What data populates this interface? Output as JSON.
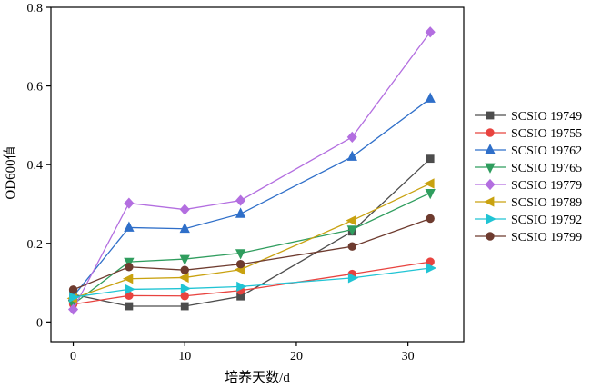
{
  "chart_data": {
    "type": "line",
    "title": "",
    "xlabel": "培养天数/d",
    "ylabel": "OD600值",
    "xlim": [
      -2,
      35
    ],
    "ylim": [
      -0.05,
      0.8
    ],
    "xticks": [
      0,
      10,
      20,
      30
    ],
    "yticks": [
      0,
      0.2,
      0.4,
      0.6,
      0.8
    ],
    "x": [
      0,
      5,
      10,
      15,
      25,
      32
    ],
    "legend_position": "right",
    "series": [
      {
        "name": "SCSIO 19749",
        "color": "#4d4d4d",
        "marker": "square",
        "values": [
          0.07,
          0.04,
          0.04,
          0.065,
          0.23,
          0.415
        ]
      },
      {
        "name": "SCSIO 19755",
        "color": "#e8433f",
        "marker": "circle",
        "values": [
          0.045,
          0.067,
          0.066,
          0.08,
          0.122,
          0.153
        ]
      },
      {
        "name": "SCSIO 19762",
        "color": "#2f6fc9",
        "marker": "triangle-up",
        "values": [
          0.065,
          0.24,
          0.237,
          0.275,
          0.42,
          0.568
        ]
      },
      {
        "name": "SCSIO 19765",
        "color": "#2f9d5e",
        "marker": "triangle-down",
        "values": [
          0.045,
          0.153,
          0.16,
          0.175,
          0.235,
          0.328
        ]
      },
      {
        "name": "SCSIO 19779",
        "color": "#b36ee0",
        "marker": "diamond",
        "values": [
          0.032,
          0.302,
          0.286,
          0.309,
          0.47,
          0.737
        ]
      },
      {
        "name": "SCSIO 19789",
        "color": "#c9a210",
        "marker": "triangle-left",
        "values": [
          0.06,
          0.11,
          0.113,
          0.133,
          0.258,
          0.352
        ]
      },
      {
        "name": "SCSIO 19792",
        "color": "#20c4d4",
        "marker": "triangle-right",
        "values": [
          0.063,
          0.083,
          0.085,
          0.09,
          0.112,
          0.137
        ]
      },
      {
        "name": "SCSIO 19799",
        "color": "#6e3b2f",
        "marker": "circle",
        "values": [
          0.082,
          0.14,
          0.132,
          0.147,
          0.192,
          0.263
        ]
      }
    ]
  }
}
